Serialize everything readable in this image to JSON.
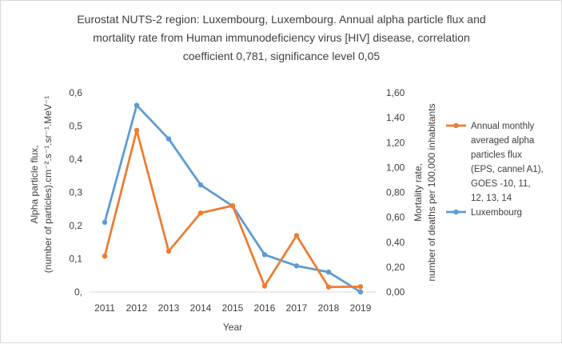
{
  "chart_data": {
    "type": "line",
    "title_lines": [
      "Eurostat NUTS-2 region: Luxembourg, Luxembourg. Annual alpha particle flux and",
      "mortality rate from Human immunodeficiency virus [HIV] disease, correlation",
      "coefficient 0,781, significance level 0,05"
    ],
    "categories": [
      "2011",
      "2012",
      "2013",
      "2014",
      "2015",
      "2016",
      "2017",
      "2018",
      "2019"
    ],
    "xlabel": "Year",
    "ylabel_left_lines": [
      "Alpha particle flux,",
      "(number of particles).cm⁻².s⁻¹.sr⁻¹.MeV⁻¹"
    ],
    "ylabel_right_lines": [
      "Mortality rate,",
      "number of deaths per 100,000 inhabitants"
    ],
    "ylim_left": [
      0,
      0.6
    ],
    "yticks_left": [
      "0,",
      "0,1",
      "0,2",
      "0,3",
      "0,4",
      "0,5",
      "0,6"
    ],
    "ylim_right": [
      0,
      1.6
    ],
    "yticks_right": [
      "0,00",
      "0,20",
      "0,40",
      "0,60",
      "0,80",
      "1,00",
      "1,20",
      "1,40",
      "1,60"
    ],
    "grid": false,
    "legend_position": "right",
    "series": [
      {
        "name_lines": [
          "Annual monthly",
          "averaged alpha",
          "particles flux",
          "(EPS, cannel A1),",
          "GOES -10, 11,",
          "12, 13, 14"
        ],
        "axis": "left",
        "color": "#ED7D31",
        "values": [
          0.108,
          0.487,
          0.123,
          0.238,
          0.26,
          0.018,
          0.17,
          0.015,
          0.016
        ]
      },
      {
        "name_lines": [
          "Luxembourg"
        ],
        "axis": "right",
        "color": "#5B9BD5",
        "values": [
          0.56,
          1.5,
          1.23,
          0.86,
          0.69,
          0.3,
          0.21,
          0.16,
          0.0
        ]
      }
    ]
  }
}
